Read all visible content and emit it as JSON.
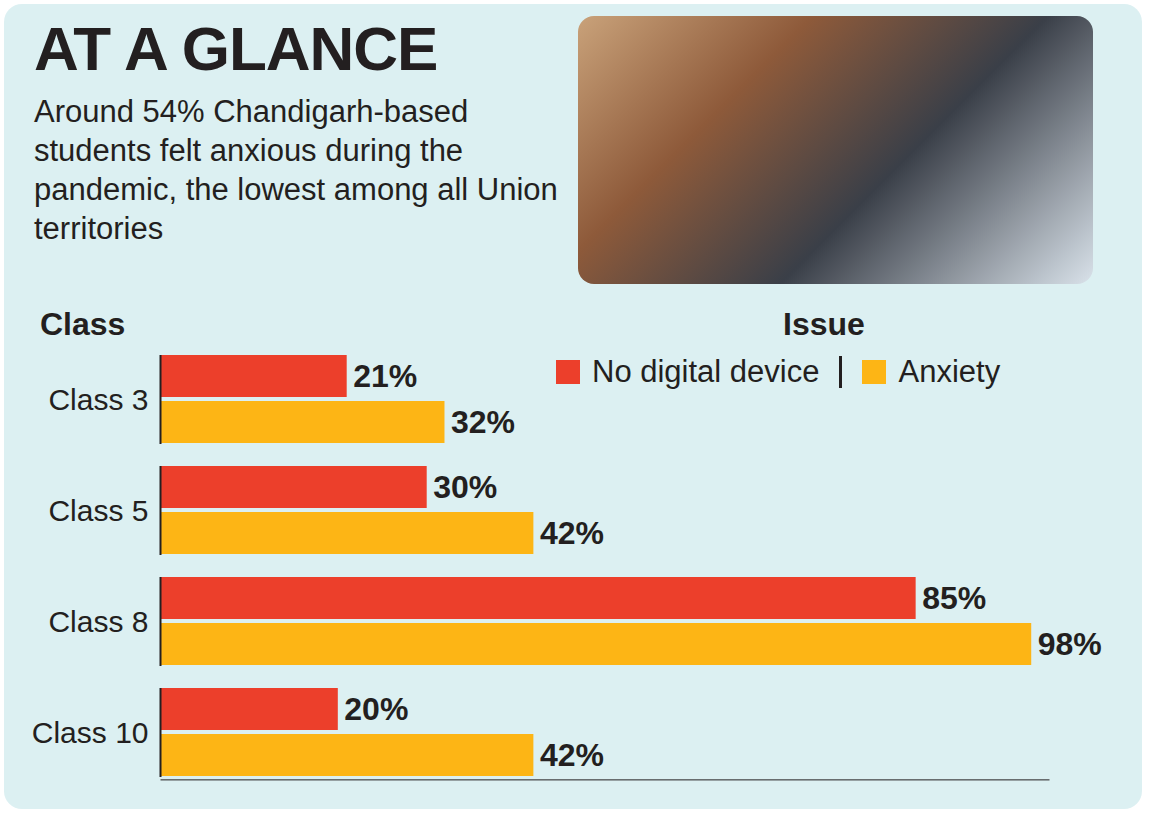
{
  "chart_data": {
    "type": "bar",
    "title": "AT A GLANCE",
    "subtitle": "Around 54% Chandigarh-based students felt anxious during the pandemic, the lowest among all Union territories",
    "ylabel": "Class",
    "legend_title": "Issue",
    "orientation": "horizontal",
    "categories": [
      "Class 3",
      "Class 5",
      "Class 8",
      "Class 10"
    ],
    "series": [
      {
        "name": "No digital device",
        "color": "#ec3f2b",
        "values": [
          21,
          30,
          85,
          20
        ],
        "value_labels": [
          "21%",
          "30%",
          "85%",
          "20%"
        ]
      },
      {
        "name": "Anxiety",
        "color": "#fdb515",
        "values": [
          32,
          42,
          98,
          42
        ],
        "value_labels": [
          "32%",
          "42%",
          "98%",
          "42%"
        ]
      }
    ],
    "xlim": [
      0,
      100
    ],
    "xticks": [],
    "grid": false,
    "legend": "top-right",
    "data_labels": true,
    "tick_labels": "y"
  }
}
